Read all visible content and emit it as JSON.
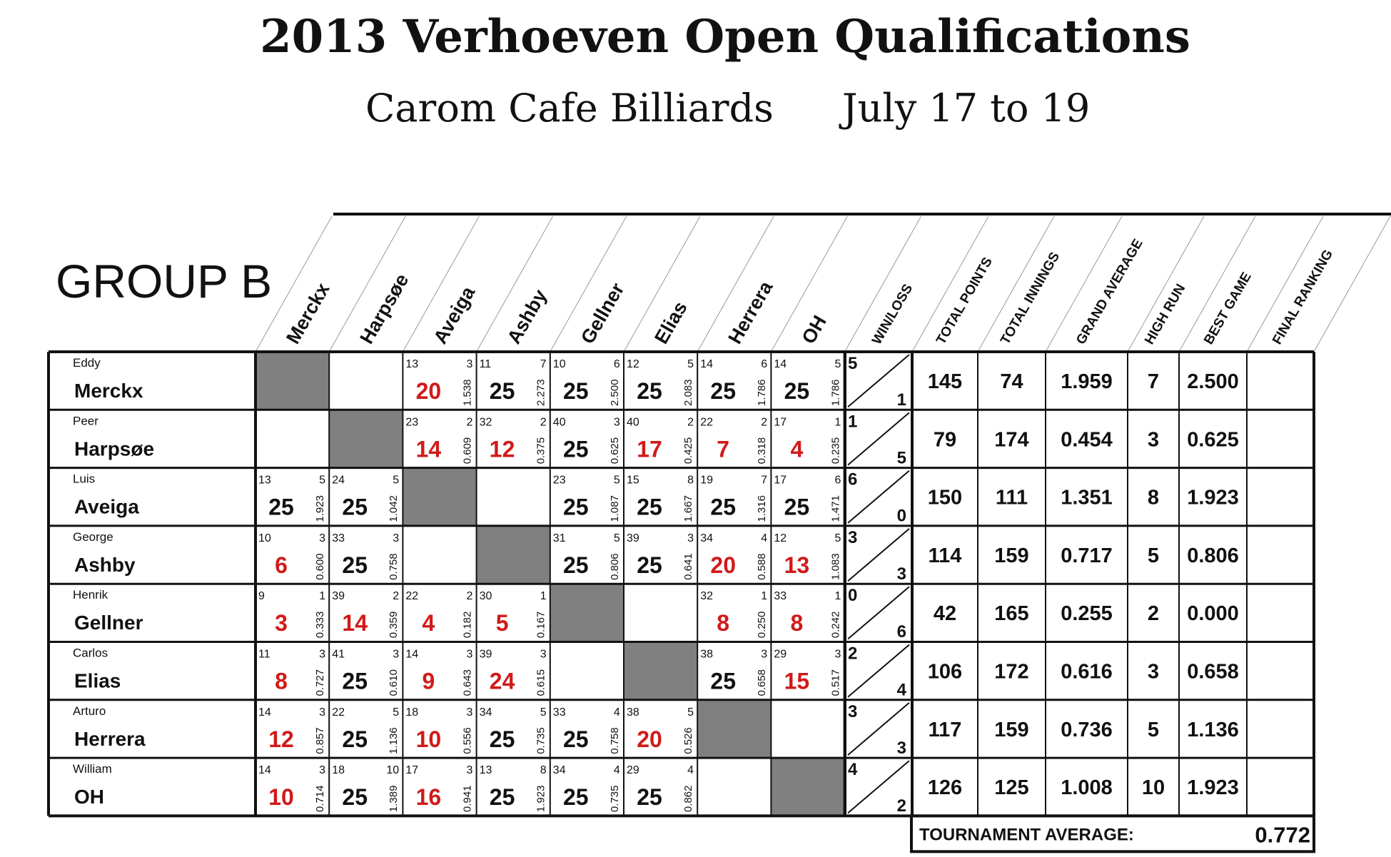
{
  "header": {
    "title": "2013 Verhoeven Open Qualifications",
    "venue": "Carom Cafe Billiards",
    "dates": "July 17 to 19"
  },
  "group_label": "GROUP B",
  "column_headers": {
    "players": [
      "Merckx",
      "Harpsøe",
      "Aveiga",
      "Ashby",
      "Gellner",
      "Elias",
      "Herrera",
      "OH"
    ],
    "stats": [
      "WIN/LOSS",
      "TOTAL POINTS",
      "TOTAL INNINGS",
      "GRAND AVERAGE",
      "HIGH RUN",
      "BEST GAME",
      "FINAL RANKING"
    ]
  },
  "colors": {
    "win_score": "#111111",
    "loss_score": "#d11a1a",
    "self_cell": "#808080",
    "line": "#111111"
  },
  "players": [
    {
      "first": "Eddy",
      "last": "Merckx",
      "games": [
        null,
        {
          "empty": true
        },
        {
          "innings": "13",
          "hr": "3",
          "score": "20",
          "avg": "1.538",
          "win": false
        },
        {
          "innings": "11",
          "hr": "7",
          "score": "25",
          "avg": "2.273",
          "win": true
        },
        {
          "innings": "10",
          "hr": "6",
          "score": "25",
          "avg": "2.500",
          "win": true
        },
        {
          "innings": "12",
          "hr": "5",
          "score": "25",
          "avg": "2.083",
          "win": true
        },
        {
          "innings": "14",
          "hr": "6",
          "score": "25",
          "avg": "1.786",
          "win": true
        },
        {
          "innings": "14",
          "hr": "5",
          "score": "25",
          "avg": "1.786",
          "win": true
        }
      ],
      "wins": "5",
      "losses": "1",
      "total_points": "145",
      "total_innings": "74",
      "grand_average": "1.959",
      "high_run": "7",
      "best_game": "2.500",
      "final_ranking": ""
    },
    {
      "first": "Peer",
      "last": "Harpsøe",
      "games": [
        {
          "empty": true
        },
        null,
        {
          "innings": "23",
          "hr": "2",
          "score": "14",
          "avg": "0.609",
          "win": false
        },
        {
          "innings": "32",
          "hr": "2",
          "score": "12",
          "avg": "0.375",
          "win": false
        },
        {
          "innings": "40",
          "hr": "3",
          "score": "25",
          "avg": "0.625",
          "win": true
        },
        {
          "innings": "40",
          "hr": "2",
          "score": "17",
          "avg": "0.425",
          "win": false
        },
        {
          "innings": "22",
          "hr": "2",
          "score": "7",
          "avg": "0.318",
          "win": false
        },
        {
          "innings": "17",
          "hr": "1",
          "score": "4",
          "avg": "0.235",
          "win": false
        }
      ],
      "wins": "1",
      "losses": "5",
      "total_points": "79",
      "total_innings": "174",
      "grand_average": "0.454",
      "high_run": "3",
      "best_game": "0.625",
      "final_ranking": ""
    },
    {
      "first": "Luis",
      "last": "Aveiga",
      "games": [
        {
          "innings": "13",
          "hr": "5",
          "score": "25",
          "avg": "1.923",
          "win": true
        },
        {
          "innings": "24",
          "hr": "5",
          "score": "25",
          "avg": "1.042",
          "win": true
        },
        null,
        {
          "empty": true
        },
        {
          "innings": "23",
          "hr": "5",
          "score": "25",
          "avg": "1.087",
          "win": true
        },
        {
          "innings": "15",
          "hr": "8",
          "score": "25",
          "avg": "1.667",
          "win": true
        },
        {
          "innings": "19",
          "hr": "7",
          "score": "25",
          "avg": "1.316",
          "win": true
        },
        {
          "innings": "17",
          "hr": "6",
          "score": "25",
          "avg": "1.471",
          "win": true
        }
      ],
      "wins": "6",
      "losses": "0",
      "total_points": "150",
      "total_innings": "111",
      "grand_average": "1.351",
      "high_run": "8",
      "best_game": "1.923",
      "final_ranking": ""
    },
    {
      "first": "George",
      "last": "Ashby",
      "games": [
        {
          "innings": "10",
          "hr": "3",
          "score": "6",
          "avg": "0.600",
          "win": false
        },
        {
          "innings": "33",
          "hr": "3",
          "score": "25",
          "avg": "0.758",
          "win": true
        },
        {
          "empty": true
        },
        null,
        {
          "innings": "31",
          "hr": "5",
          "score": "25",
          "avg": "0.806",
          "win": true
        },
        {
          "innings": "39",
          "hr": "3",
          "score": "25",
          "avg": "0.641",
          "win": true
        },
        {
          "innings": "34",
          "hr": "4",
          "score": "20",
          "avg": "0.588",
          "win": false
        },
        {
          "innings": "12",
          "hr": "5",
          "score": "13",
          "avg": "1.083",
          "win": false
        }
      ],
      "wins": "3",
      "losses": "3",
      "total_points": "114",
      "total_innings": "159",
      "grand_average": "0.717",
      "high_run": "5",
      "best_game": "0.806",
      "final_ranking": ""
    },
    {
      "first": "Henrik",
      "last": "Gellner",
      "games": [
        {
          "innings": "9",
          "hr": "1",
          "score": "3",
          "avg": "0.333",
          "win": false
        },
        {
          "innings": "39",
          "hr": "2",
          "score": "14",
          "avg": "0.359",
          "win": false
        },
        {
          "innings": "22",
          "hr": "2",
          "score": "4",
          "avg": "0.182",
          "win": false
        },
        {
          "innings": "30",
          "hr": "1",
          "score": "5",
          "avg": "0.167",
          "win": false
        },
        null,
        {
          "empty": true
        },
        {
          "innings": "32",
          "hr": "1",
          "score": "8",
          "avg": "0.250",
          "win": false
        },
        {
          "innings": "33",
          "hr": "1",
          "score": "8",
          "avg": "0.242",
          "win": false
        }
      ],
      "wins": "0",
      "losses": "6",
      "total_points": "42",
      "total_innings": "165",
      "grand_average": "0.255",
      "high_run": "2",
      "best_game": "0.000",
      "final_ranking": ""
    },
    {
      "first": "Carlos",
      "last": "Elias",
      "games": [
        {
          "innings": "11",
          "hr": "3",
          "score": "8",
          "avg": "0.727",
          "win": false
        },
        {
          "innings": "41",
          "hr": "3",
          "score": "25",
          "avg": "0.610",
          "win": true
        },
        {
          "innings": "14",
          "hr": "3",
          "score": "9",
          "avg": "0.643",
          "win": false
        },
        {
          "innings": "39",
          "hr": "3",
          "score": "24",
          "avg": "0.615",
          "win": false
        },
        {
          "empty": true
        },
        null,
        {
          "innings": "38",
          "hr": "3",
          "score": "25",
          "avg": "0.658",
          "win": true
        },
        {
          "innings": "29",
          "hr": "3",
          "score": "15",
          "avg": "0.517",
          "win": false
        }
      ],
      "wins": "2",
      "losses": "4",
      "total_points": "106",
      "total_innings": "172",
      "grand_average": "0.616",
      "high_run": "3",
      "best_game": "0.658",
      "final_ranking": ""
    },
    {
      "first": "Arturo",
      "last": "Herrera",
      "games": [
        {
          "innings": "14",
          "hr": "3",
          "score": "12",
          "avg": "0.857",
          "win": false
        },
        {
          "innings": "22",
          "hr": "5",
          "score": "25",
          "avg": "1.136",
          "win": true
        },
        {
          "innings": "18",
          "hr": "3",
          "score": "10",
          "avg": "0.556",
          "win": false
        },
        {
          "innings": "34",
          "hr": "5",
          "score": "25",
          "avg": "0.735",
          "win": true
        },
        {
          "innings": "33",
          "hr": "4",
          "score": "25",
          "avg": "0.758",
          "win": true
        },
        {
          "innings": "38",
          "hr": "5",
          "score": "20",
          "avg": "0.526",
          "win": false
        },
        null,
        {
          "empty": true
        }
      ],
      "wins": "3",
      "losses": "3",
      "total_points": "117",
      "total_innings": "159",
      "grand_average": "0.736",
      "high_run": "5",
      "best_game": "1.136",
      "final_ranking": ""
    },
    {
      "first": "William",
      "last": "OH",
      "games": [
        {
          "innings": "14",
          "hr": "3",
          "score": "10",
          "avg": "0.714",
          "win": false
        },
        {
          "innings": "18",
          "hr": "10",
          "score": "25",
          "avg": "1.389",
          "win": true
        },
        {
          "innings": "17",
          "hr": "3",
          "score": "16",
          "avg": "0.941",
          "win": false
        },
        {
          "innings": "13",
          "hr": "8",
          "score": "25",
          "avg": "1.923",
          "win": true
        },
        {
          "innings": "34",
          "hr": "4",
          "score": "25",
          "avg": "0.735",
          "win": true
        },
        {
          "innings": "29",
          "hr": "4",
          "score": "25",
          "avg": "0.862",
          "win": true
        },
        {
          "empty": true
        },
        null
      ],
      "wins": "4",
      "losses": "2",
      "total_points": "126",
      "total_innings": "125",
      "grand_average": "1.008",
      "high_run": "10",
      "best_game": "1.923",
      "final_ranking": ""
    }
  ],
  "tournament_average": {
    "label": "TOURNAMENT AVERAGE:",
    "value": "0.772"
  }
}
